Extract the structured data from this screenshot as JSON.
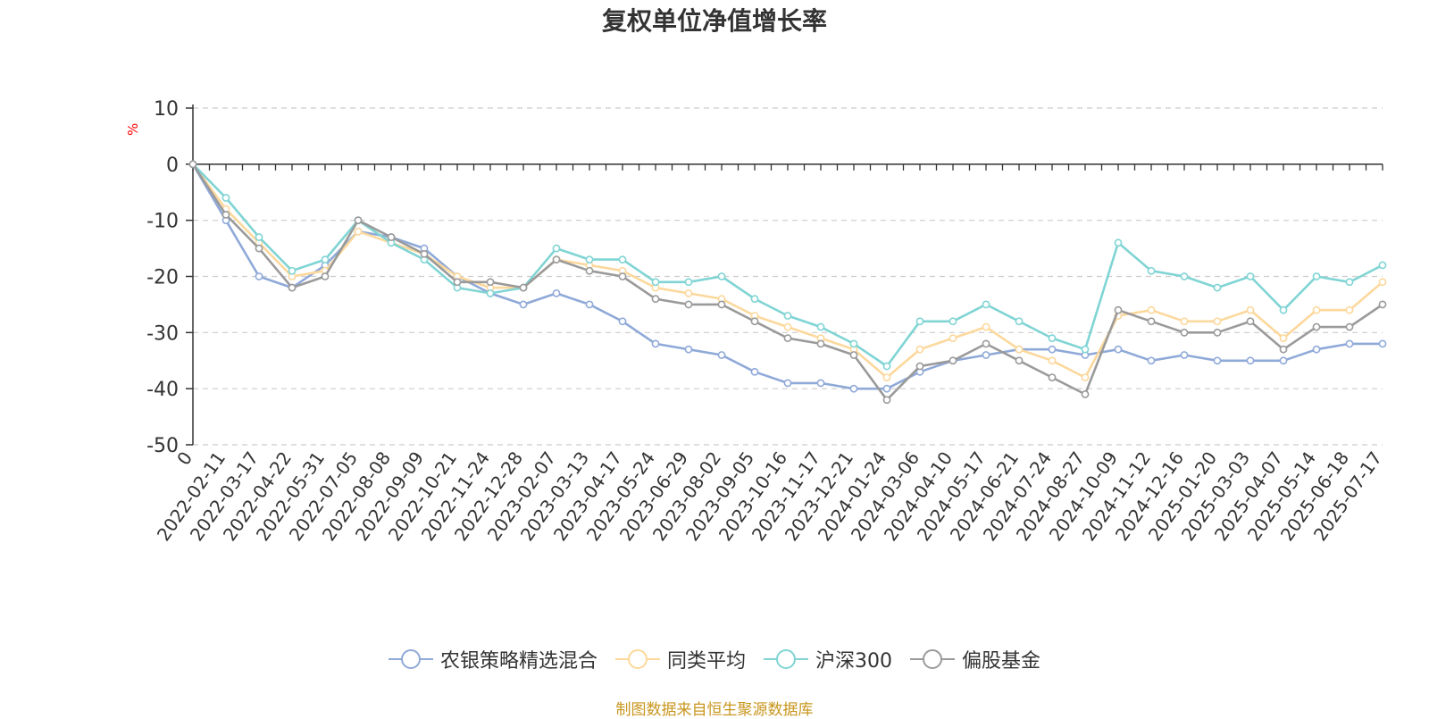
{
  "chart_data": {
    "type": "line",
    "title": "复权单位净值增长率",
    "ylabel": "%",
    "ylim": [
      -50,
      10
    ],
    "yticks": [
      10,
      0,
      -10,
      -20,
      -30,
      -40,
      -50
    ],
    "grid": true,
    "legend_position": "bottom-center",
    "x_tick_labels": [
      "0",
      "2022-02-11",
      "2022-03-17",
      "2022-04-22",
      "2022-05-31",
      "2022-07-05",
      "2022-08-08",
      "2022-09-09",
      "2022-10-21",
      "2022-11-24",
      "2022-12-28",
      "2023-02-07",
      "2023-03-13",
      "2023-04-17",
      "2023-05-24",
      "2023-06-29",
      "2023-08-02",
      "2023-09-05",
      "2023-10-16",
      "2023-11-17",
      "2023-12-21",
      "2024-01-24",
      "2024-03-06",
      "2024-04-10",
      "2024-05-17",
      "2024-06-21",
      "2024-07-24",
      "2024-08-27",
      "2024-10-09",
      "2024-11-12",
      "2024-12-16",
      "2025-01-20",
      "2025-03-03",
      "2025-04-07",
      "2025-05-14",
      "2025-06-18",
      "2025-07-17"
    ],
    "series": [
      {
        "name": "农银策略精选混合",
        "color": "#8fa9d8",
        "values": [
          0,
          -10,
          -20,
          -22,
          -18,
          -12,
          -13,
          -15,
          -20,
          -23,
          -25,
          -23,
          -25,
          -28,
          -32,
          -33,
          -34,
          -37,
          -39,
          -39,
          -40,
          -40,
          -37,
          -35,
          -34,
          -33,
          -33,
          -34,
          -33,
          -35,
          -34,
          -35,
          -35,
          -35,
          -33,
          -32,
          -32
        ]
      },
      {
        "name": "同类平均",
        "color": "#fcd89c",
        "values": [
          0,
          -8,
          -14,
          -20,
          -19,
          -12,
          -14,
          -16,
          -20,
          -22,
          -22,
          -17,
          -18,
          -19,
          -22,
          -23,
          -24,
          -27,
          -29,
          -31,
          -33,
          -38,
          -33,
          -31,
          -29,
          -33,
          -35,
          -38,
          -27,
          -26,
          -28,
          -28,
          -26,
          -31,
          -26,
          -26,
          -21
        ]
      },
      {
        "name": "沪深300",
        "color": "#80d4d4",
        "values": [
          0,
          -6,
          -13,
          -19,
          -17,
          -10,
          -14,
          -17,
          -22,
          -23,
          -22,
          -15,
          -17,
          -17,
          -21,
          -21,
          -20,
          -24,
          -27,
          -29,
          -32,
          -36,
          -28,
          -28,
          -25,
          -28,
          -31,
          -33,
          -14,
          -19,
          -20,
          -22,
          -20,
          -26,
          -20,
          -21,
          -18
        ]
      },
      {
        "name": "偏股基金",
        "color": "#9a9a9a",
        "values": [
          0,
          -9,
          -15,
          -22,
          -20,
          -10,
          -13,
          -16,
          -21,
          -21,
          -22,
          -17,
          -19,
          -20,
          -24,
          -25,
          -25,
          -28,
          -31,
          -32,
          -34,
          -42,
          -36,
          -35,
          -32,
          -35,
          -38,
          -41,
          -26,
          -28,
          -30,
          -30,
          -28,
          -33,
          -29,
          -29,
          -25
        ]
      }
    ]
  },
  "source_label": "制图数据来自恒生聚源数据库"
}
